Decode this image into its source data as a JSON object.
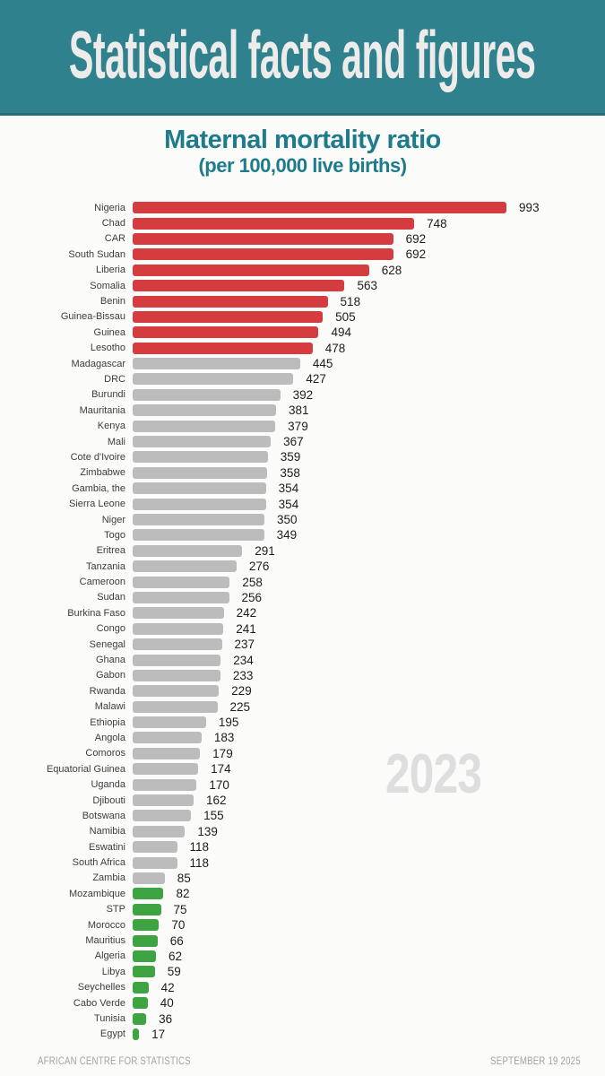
{
  "header": {
    "title": "Statistical facts and figures"
  },
  "watermark": "2023",
  "footer": {
    "left": "AFRICAN CENTRE FOR STATISTICS",
    "right": "SEPTEMBER 19 2025"
  },
  "colors": {
    "header_band": "#2e818d",
    "header_band_edge": "#256d79",
    "title_teal": "#1e7b8b",
    "watermark_gray": "#dedede",
    "footer_gray": "#a2a2a2"
  },
  "chart_data": {
    "type": "bar",
    "orientation": "horizontal",
    "title": "Maternal mortality ratio",
    "subtitle": "(per 100,000 live births)",
    "unit": "per 100,000 live births",
    "year": "2023",
    "xlim": [
      0,
      1000
    ],
    "grid": false,
    "legend": false,
    "value_labels": "end-of-bar",
    "colors": {
      "high": "#d53c40",
      "mid": "#bcbcbc",
      "low": "#3ea442"
    },
    "series": [
      {
        "country": "Nigeria",
        "value": 993,
        "band": "high"
      },
      {
        "country": "Chad",
        "value": 748,
        "band": "high"
      },
      {
        "country": "CAR",
        "value": 692,
        "band": "high"
      },
      {
        "country": "South Sudan",
        "value": 692,
        "band": "high"
      },
      {
        "country": "Liberia",
        "value": 628,
        "band": "high"
      },
      {
        "country": "Somalia",
        "value": 563,
        "band": "high"
      },
      {
        "country": "Benin",
        "value": 518,
        "band": "high"
      },
      {
        "country": "Guinea-Bissau",
        "value": 505,
        "band": "high"
      },
      {
        "country": "Guinea",
        "value": 494,
        "band": "high"
      },
      {
        "country": "Lesotho",
        "value": 478,
        "band": "high"
      },
      {
        "country": "Madagascar",
        "value": 445,
        "band": "mid"
      },
      {
        "country": "DRC",
        "value": 427,
        "band": "mid"
      },
      {
        "country": "Burundi",
        "value": 392,
        "band": "mid"
      },
      {
        "country": "Mauritania",
        "value": 381,
        "band": "mid"
      },
      {
        "country": "Kenya",
        "value": 379,
        "band": "mid"
      },
      {
        "country": "Mali",
        "value": 367,
        "band": "mid"
      },
      {
        "country": "Cote d'Ivoire",
        "value": 359,
        "band": "mid"
      },
      {
        "country": "Zimbabwe",
        "value": 358,
        "band": "mid"
      },
      {
        "country": "Gambia, the",
        "value": 354,
        "band": "mid"
      },
      {
        "country": "Sierra Leone",
        "value": 354,
        "band": "mid"
      },
      {
        "country": "Niger",
        "value": 350,
        "band": "mid"
      },
      {
        "country": "Togo",
        "value": 349,
        "band": "mid"
      },
      {
        "country": "Eritrea",
        "value": 291,
        "band": "mid"
      },
      {
        "country": "Tanzania",
        "value": 276,
        "band": "mid"
      },
      {
        "country": "Cameroon",
        "value": 258,
        "band": "mid"
      },
      {
        "country": "Sudan",
        "value": 256,
        "band": "mid"
      },
      {
        "country": "Burkina Faso",
        "value": 242,
        "band": "mid"
      },
      {
        "country": "Congo",
        "value": 241,
        "band": "mid"
      },
      {
        "country": "Senegal",
        "value": 237,
        "band": "mid"
      },
      {
        "country": "Ghana",
        "value": 234,
        "band": "mid"
      },
      {
        "country": "Gabon",
        "value": 233,
        "band": "mid"
      },
      {
        "country": "Rwanda",
        "value": 229,
        "band": "mid"
      },
      {
        "country": "Malawi",
        "value": 225,
        "band": "mid"
      },
      {
        "country": "Ethiopia",
        "value": 195,
        "band": "mid"
      },
      {
        "country": "Angola",
        "value": 183,
        "band": "mid"
      },
      {
        "country": "Comoros",
        "value": 179,
        "band": "mid"
      },
      {
        "country": "Equatorial Guinea",
        "value": 174,
        "band": "mid"
      },
      {
        "country": "Uganda",
        "value": 170,
        "band": "mid"
      },
      {
        "country": "Djibouti",
        "value": 162,
        "band": "mid"
      },
      {
        "country": "Botswana",
        "value": 155,
        "band": "mid"
      },
      {
        "country": "Namibia",
        "value": 139,
        "band": "mid"
      },
      {
        "country": "Eswatini",
        "value": 118,
        "band": "mid"
      },
      {
        "country": "South Africa",
        "value": 118,
        "band": "mid"
      },
      {
        "country": "Zambia",
        "value": 85,
        "band": "mid"
      },
      {
        "country": "Mozambique",
        "value": 82,
        "band": "low"
      },
      {
        "country": "STP",
        "value": 75,
        "band": "low"
      },
      {
        "country": "Morocco",
        "value": 70,
        "band": "low"
      },
      {
        "country": "Mauritius",
        "value": 66,
        "band": "low"
      },
      {
        "country": "Algeria",
        "value": 62,
        "band": "low"
      },
      {
        "country": "Libya",
        "value": 59,
        "band": "low"
      },
      {
        "country": "Seychelles",
        "value": 42,
        "band": "low"
      },
      {
        "country": "Cabo Verde",
        "value": 40,
        "band": "low"
      },
      {
        "country": "Tunisia",
        "value": 36,
        "band": "low"
      },
      {
        "country": "Egypt",
        "value": 17,
        "band": "low"
      }
    ]
  }
}
